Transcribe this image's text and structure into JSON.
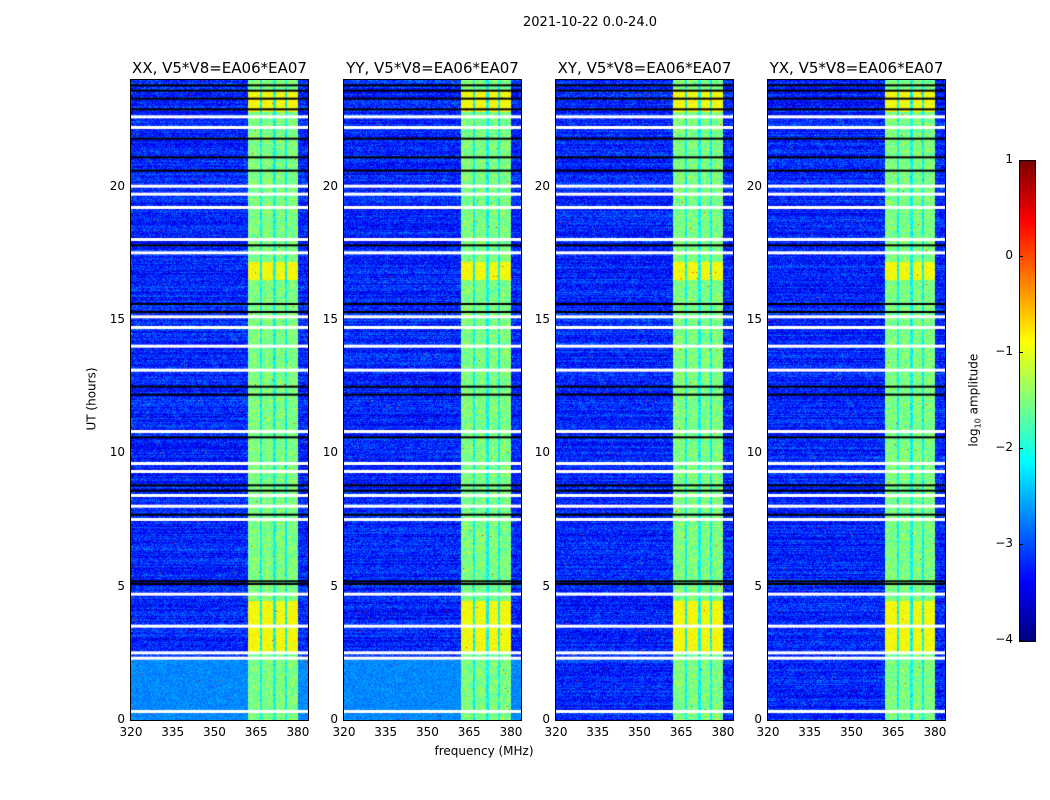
{
  "chart_data": {
    "type": "heatmap",
    "title": "2021-10-22 0.0-24.0",
    "xlabel": "frequency (MHz)",
    "ylabel": "UT (hours)",
    "xlim": [
      320,
      383.6
    ],
    "ylim": [
      0,
      24
    ],
    "xticks": [
      "320",
      "335",
      "350",
      "365",
      "380"
    ],
    "xtick_values": [
      320,
      335,
      350,
      365,
      380
    ],
    "yticks": [
      "0",
      "5",
      "10",
      "15",
      "20"
    ],
    "ytick_values": [
      0,
      5,
      10,
      15,
      20
    ],
    "panels": [
      {
        "title": "XX, V5*V8=EA06*EA07",
        "quiet_early_hours": true
      },
      {
        "title": "YY, V5*V8=EA06*EA07",
        "quiet_early_hours": true
      },
      {
        "title": "XY, V5*V8=EA06*EA07",
        "quiet_early_hours": false
      },
      {
        "title": "YX, V5*V8=EA06*EA07",
        "quiet_early_hours": false
      }
    ],
    "background_log_amplitude": -3.2,
    "bright_band_mhz": [
      [
        362,
        366
      ],
      [
        367,
        371
      ],
      [
        372,
        375
      ],
      [
        376,
        380
      ]
    ],
    "bright_band_log_amplitude": -1.5,
    "flagged_hours_white": [
      0.3,
      2.3,
      2.5,
      3.5,
      4.7,
      7.5,
      8.0,
      8.4,
      9.3,
      9.6,
      10.8,
      13.1,
      14.0,
      14.7,
      15.1,
      17.5,
      18.0,
      19.2,
      19.7,
      20.0,
      22.2,
      22.6
    ],
    "flagged_hours_black": [
      5.1,
      5.2,
      7.7,
      8.6,
      8.8,
      10.6,
      12.2,
      12.5,
      15.3,
      15.6,
      17.8,
      20.6,
      21.1,
      21.8,
      22.9,
      23.3,
      23.6,
      23.8
    ],
    "colorbar": {
      "label_main": "log",
      "label_sub": "10",
      "label_rest": " amplitude",
      "range": [
        -4,
        1
      ],
      "ticks": [
        "1",
        "0",
        "−1",
        "−2",
        "−3",
        "−4"
      ],
      "tick_values": [
        1,
        0,
        -1,
        -2,
        -3,
        -4
      ],
      "colormap": "jet"
    }
  }
}
